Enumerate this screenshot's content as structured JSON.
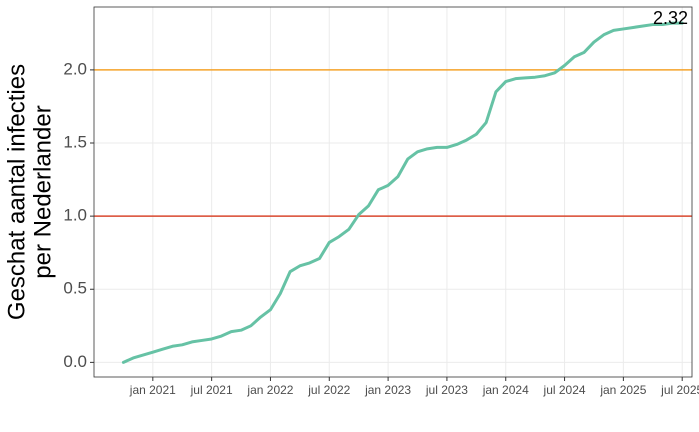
{
  "chart_data": {
    "type": "line",
    "ylabel": [
      "Geschat aantal infecties",
      "per Nederlander"
    ],
    "annotation": "2.32",
    "color": "#66c2a5",
    "x": [
      "2020-10",
      "2020-11",
      "2020-12",
      "2021-01",
      "2021-02",
      "2021-03",
      "2021-04",
      "2021-05",
      "2021-06",
      "2021-07",
      "2021-08",
      "2021-09",
      "2021-10",
      "2021-11",
      "2021-12",
      "2022-01",
      "2022-02",
      "2022-03",
      "2022-04",
      "2022-05",
      "2022-06",
      "2022-07",
      "2022-08",
      "2022-09",
      "2022-10",
      "2022-11",
      "2022-12",
      "2023-01",
      "2023-02",
      "2023-03",
      "2023-04",
      "2023-05",
      "2023-06",
      "2023-07",
      "2023-08",
      "2023-09",
      "2023-10",
      "2023-11",
      "2023-12",
      "2024-01",
      "2024-02",
      "2024-03",
      "2024-04",
      "2024-05",
      "2024-06",
      "2024-07",
      "2024-08",
      "2024-09",
      "2024-10",
      "2024-11",
      "2024-12",
      "2025-01",
      "2025-02",
      "2025-03",
      "2025-04",
      "2025-05",
      "2025-06",
      "2025-07"
    ],
    "values": [
      0.0,
      0.03,
      0.05,
      0.07,
      0.09,
      0.11,
      0.12,
      0.14,
      0.15,
      0.16,
      0.18,
      0.21,
      0.22,
      0.25,
      0.31,
      0.36,
      0.47,
      0.62,
      0.66,
      0.68,
      0.71,
      0.82,
      0.86,
      0.91,
      1.01,
      1.07,
      1.18,
      1.21,
      1.27,
      1.39,
      1.44,
      1.46,
      1.47,
      1.47,
      1.49,
      1.52,
      1.56,
      1.64,
      1.85,
      1.92,
      1.94,
      1.945,
      1.95,
      1.96,
      1.98,
      2.03,
      2.09,
      2.12,
      2.19,
      2.24,
      2.27,
      2.28,
      2.29,
      2.3,
      2.31,
      2.31,
      2.32,
      2.32
    ],
    "hlines": [
      {
        "value": 2,
        "color": "#f5a32a"
      },
      {
        "value": 1,
        "color": "#d9482e"
      }
    ],
    "xlim": [
      "2020-07",
      "2025-08"
    ],
    "xticks": [
      {
        "value": "2021-01",
        "label": "jan 2021"
      },
      {
        "value": "2021-07",
        "label": "jul 2021"
      },
      {
        "value": "2022-01",
        "label": "jan 2022"
      },
      {
        "value": "2022-07",
        "label": "jul 2022"
      },
      {
        "value": "2023-01",
        "label": "jan 2023"
      },
      {
        "value": "2023-07",
        "label": "jul 2023"
      },
      {
        "value": "2024-01",
        "label": "jan 2024"
      },
      {
        "value": "2024-07",
        "label": "jul 2024"
      },
      {
        "value": "2025-01",
        "label": "jan 2025"
      },
      {
        "value": "2025-07",
        "label": "jul 2025"
      }
    ],
    "ylim": [
      -0.1,
      2.43
    ],
    "yticks": [
      {
        "value": 0,
        "label": "0.0"
      },
      0.5,
      {
        "value": 1,
        "label": "1.0"
      },
      1.5,
      {
        "value": 2,
        "label": "2.0"
      }
    ],
    "grid": true
  }
}
